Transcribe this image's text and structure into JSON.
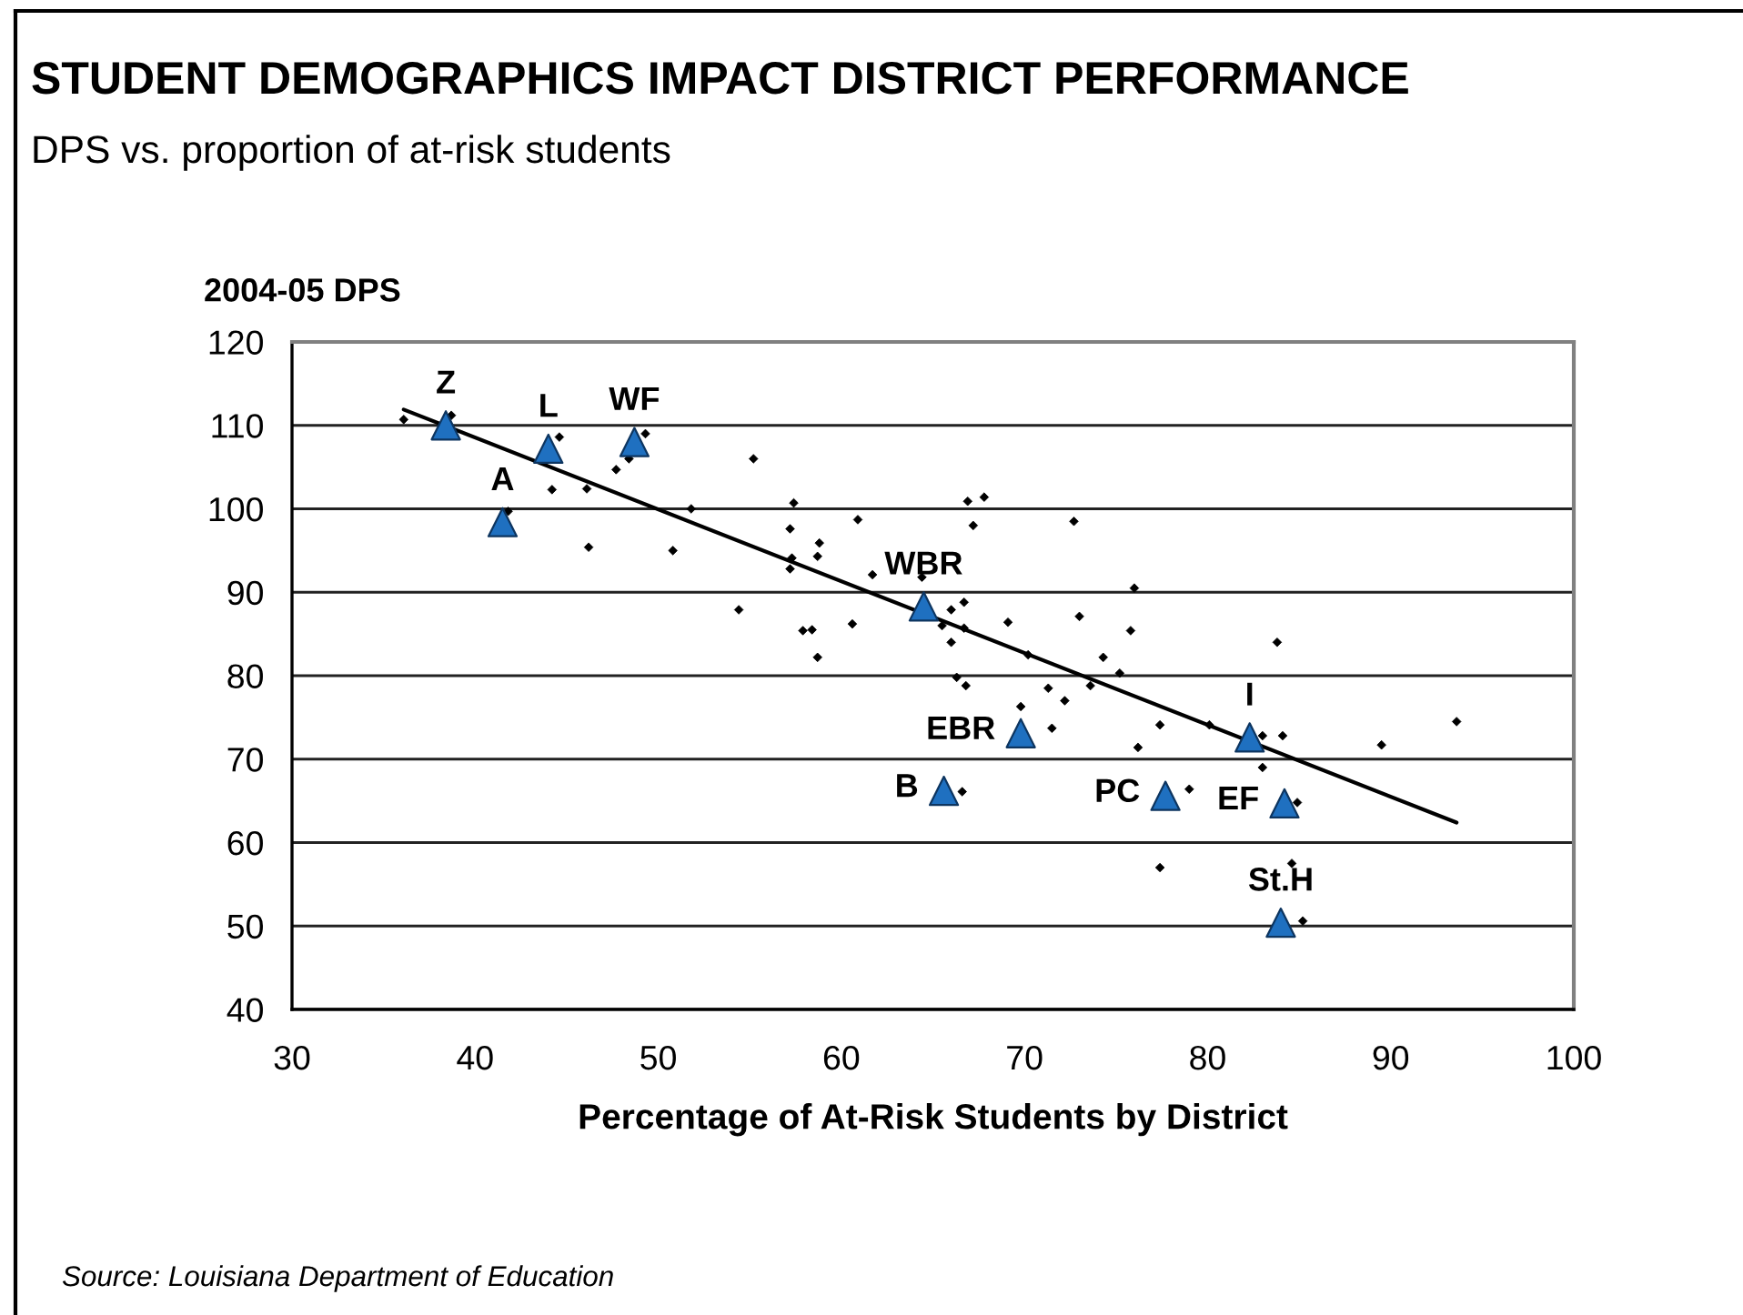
{
  "chart_data": {
    "type": "scatter",
    "title": "STUDENT DEMOGRAPHICS IMPACT DISTRICT PERFORMANCE",
    "subtitle": "DPS vs. proportion of at-risk students",
    "xlabel": "Percentage of At-Risk Students by District",
    "ylabel": "2004-05 DPS",
    "annotations": [
      "Source: Louisiana Department of Education"
    ],
    "xlim": [
      30,
      100
    ],
    "xticks": [
      30,
      40,
      50,
      60,
      70,
      80,
      90,
      100
    ],
    "ylim": [
      40,
      120
    ],
    "yticks": [
      40,
      50,
      60,
      70,
      80,
      90,
      100,
      110,
      120
    ],
    "grid": "y",
    "series": [
      {
        "marker": "diamond",
        "color": "#000000",
        "x": [
          36.1,
          38.7,
          41.8,
          44.2,
          44.6,
          46.1,
          46.2,
          47.7,
          48.4,
          49.3,
          50.8,
          51.8,
          54.4,
          55.2,
          57.2,
          57.2,
          57.3,
          57.4,
          57.9,
          58.4,
          58.7,
          58.7,
          58.8,
          60.6,
          60.9,
          61.7,
          64.4,
          65.5,
          66.0,
          66.0,
          66.3,
          66.6,
          66.7,
          66.7,
          66.8,
          66.9,
          67.2,
          67.8,
          69.1,
          69.8,
          70.2,
          71.3,
          71.5,
          72.2,
          72.7,
          73.0,
          73.6,
          74.3,
          75.2,
          75.8,
          76.0,
          76.2,
          77.4,
          77.4,
          79.0,
          80.1,
          83.0,
          83.0,
          83.8,
          84.1,
          84.6,
          84.9,
          85.2,
          89.5,
          93.6
        ],
        "values": [
          110.7,
          111.2,
          99.7,
          102.3,
          108.6,
          102.4,
          95.4,
          104.7,
          106.0,
          109.0,
          95.0,
          100.0,
          87.9,
          106.0,
          97.6,
          92.8,
          94.1,
          100.7,
          85.4,
          85.5,
          94.3,
          82.2,
          95.9,
          86.2,
          98.7,
          92.1,
          91.8,
          86.0,
          87.9,
          84.0,
          79.8,
          66.1,
          88.8,
          85.7,
          78.8,
          100.9,
          98.0,
          101.4,
          86.4,
          76.3,
          82.5,
          78.5,
          73.7,
          77.0,
          98.5,
          87.1,
          78.8,
          82.2,
          80.3,
          85.4,
          90.5,
          71.4,
          74.1,
          57.0,
          66.4,
          74.1,
          72.8,
          69.0,
          84.0,
          72.8,
          57.5,
          64.8,
          50.6,
          71.7,
          74.5
        ]
      },
      {
        "type": "line",
        "marker": "none",
        "line_style": "solid",
        "color": "#000000",
        "x": [
          36.1,
          93.6
        ],
        "values": [
          111.9,
          62.4
        ]
      },
      {
        "marker": "triangle",
        "color": "#1f70c0",
        "x": [
          38.4,
          41.5,
          44.0,
          48.7,
          64.5,
          65.6,
          69.8,
          77.7,
          82.3,
          84.2,
          84.0
        ],
        "values": [
          110.0,
          98.4,
          107.2,
          108.0,
          88.3,
          66.2,
          73.1,
          65.6,
          72.6,
          64.7,
          50.4
        ],
        "value_labels": [
          "Z",
          "A",
          "L",
          "WF",
          "WBR",
          "B",
          "EBR",
          "PC",
          "I",
          "EF",
          "St.H"
        ]
      }
    ]
  }
}
